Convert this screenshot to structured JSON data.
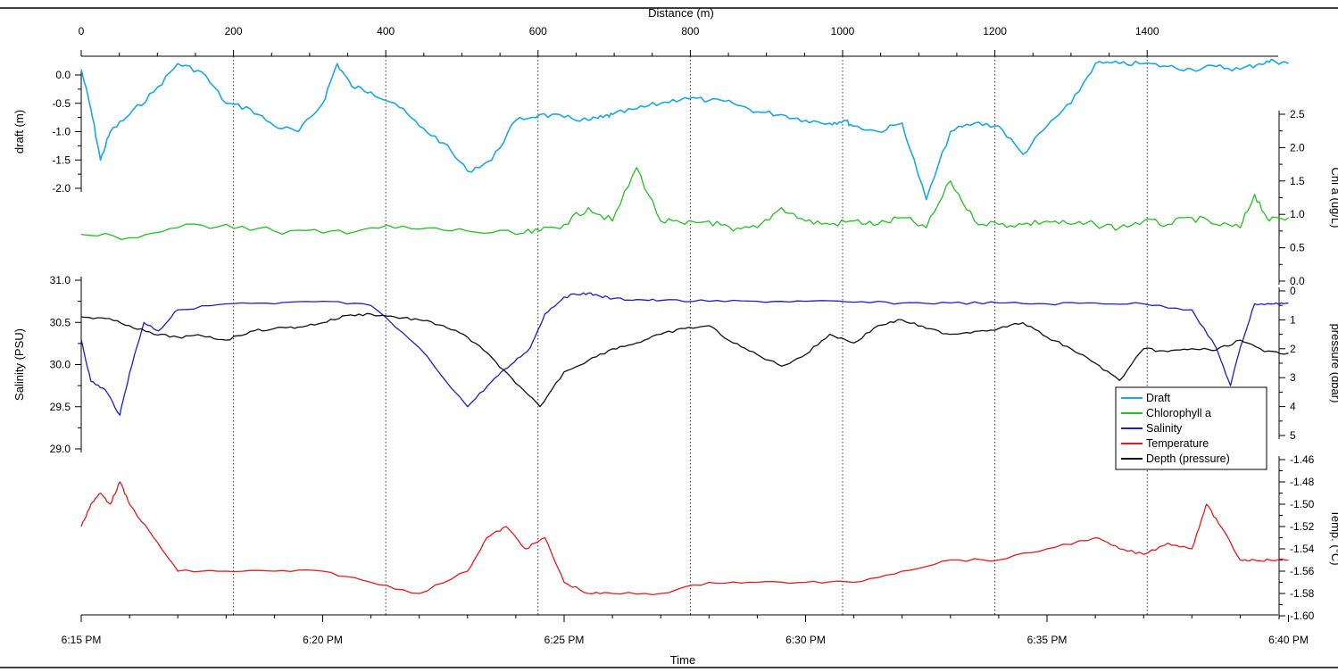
{
  "chart_data": {
    "type": "line",
    "top_axis": {
      "label": "Distance (m)",
      "range": [
        0,
        1500
      ],
      "ticks": [
        "0",
        "200",
        "400",
        "600",
        "800",
        "1000",
        "1200",
        "1400"
      ]
    },
    "x_axis": {
      "label": "Time",
      "range_minutes": [
        0,
        25
      ],
      "ticks": [
        "6:15 PM",
        "6:20 PM",
        "6:25 PM",
        "6:30 PM",
        "6:35 PM",
        "6:40 PM"
      ]
    },
    "vertical_gridlines_distance_m": [
      200,
      400,
      600,
      800,
      1000,
      1200,
      1400
    ],
    "panels": [
      {
        "key": "draft",
        "ylabel": "draft (m)",
        "side": "left",
        "ylim": [
          -2.2,
          0.3
        ],
        "ticks": [
          "0.0",
          "-0.5",
          "-1.0",
          "-1.5",
          "-2.0"
        ]
      },
      {
        "key": "chl",
        "ylabel": "Chl a (ug/L)",
        "side": "right",
        "ylim": [
          0.0,
          2.5
        ],
        "ticks": [
          "2.5",
          "2.0",
          "1.5",
          "1.0",
          "0.5",
          "0.0"
        ]
      },
      {
        "key": "salinity",
        "ylabel": "Salinity (PSU)",
        "side": "left",
        "ylim": [
          29.0,
          31.0
        ],
        "ticks": [
          "31.0",
          "30.5",
          "30.0",
          "29.5",
          "29.0"
        ]
      },
      {
        "key": "pressure",
        "ylabel": "pressure (dbar)",
        "side": "right",
        "ylim": [
          0,
          5
        ],
        "inverted": true,
        "ticks": [
          "0",
          "1",
          "2",
          "3",
          "4",
          "5"
        ]
      },
      {
        "key": "temperature",
        "ylabel": "Temp. (°C)",
        "side": "right",
        "ylim": [
          -1.6,
          -1.46
        ],
        "ticks": [
          "-1.46",
          "-1.48",
          "-1.50",
          "-1.52",
          "-1.54",
          "-1.56",
          "-1.58",
          "-1.60"
        ]
      }
    ],
    "series": [
      {
        "name": "Draft",
        "color": "#1aa7e8",
        "axis": "draft",
        "x_minutes": [
          0,
          0.2,
          0.4,
          0.6,
          1.0,
          1.5,
          2.0,
          2.5,
          3.0,
          3.5,
          4.0,
          4.5,
          5.0,
          5.3,
          5.6,
          6.0,
          6.5,
          7.0,
          7.5,
          8.0,
          8.5,
          9.0,
          9.5,
          10.0,
          10.5,
          10.8,
          11.0,
          11.5,
          12.0,
          12.5,
          13.0,
          13.5,
          14.0,
          14.5,
          15.0,
          15.5,
          15.8,
          16.0,
          16.5,
          17.0,
          17.5,
          18.0,
          18.5,
          19.0,
          19.5,
          20.0,
          20.5,
          21.0,
          21.5,
          22.0,
          22.5,
          23.0,
          23.5,
          24.0,
          24.4,
          24.7,
          25.0
        ],
        "values": [
          0.1,
          -0.6,
          -1.5,
          -1.0,
          -0.7,
          -0.3,
          0.2,
          0.05,
          -0.5,
          -0.6,
          -0.9,
          -1.0,
          -0.5,
          0.2,
          -0.2,
          -0.3,
          -0.5,
          -0.9,
          -1.2,
          -1.7,
          -1.5,
          -0.8,
          -0.7,
          -0.75,
          -0.8,
          -0.75,
          -0.7,
          -0.6,
          -0.5,
          -0.4,
          -0.45,
          -0.5,
          -0.65,
          -0.7,
          -0.8,
          -0.85,
          -0.8,
          -0.9,
          -1.0,
          -0.85,
          -2.2,
          -1.0,
          -0.85,
          -0.9,
          -1.4,
          -0.9,
          -0.5,
          0.2,
          0.2,
          0.2,
          0.15,
          0.1,
          0.15,
          0.1,
          0.2,
          0.25,
          0.2
        ]
      },
      {
        "name": "Chlorophyll a",
        "color": "#22c022",
        "axis": "chl",
        "x_minutes": [
          0,
          1.0,
          2.0,
          3.0,
          4.0,
          5.0,
          6.0,
          7.0,
          8.0,
          9.0,
          9.5,
          10.0,
          10.5,
          11.0,
          11.5,
          12.0,
          12.5,
          13.0,
          13.5,
          14.0,
          14.5,
          15.0,
          15.5,
          16.0,
          16.5,
          17.0,
          17.5,
          18.0,
          18.5,
          19.0,
          19.5,
          20.0,
          20.5,
          21.0,
          21.5,
          22.0,
          22.5,
          23.0,
          23.5,
          24.0,
          24.3,
          24.6,
          25.0
        ],
        "values": [
          0.7,
          0.65,
          0.8,
          0.85,
          0.75,
          0.72,
          0.8,
          0.78,
          0.75,
          0.7,
          0.75,
          0.85,
          1.1,
          0.9,
          1.7,
          0.9,
          0.85,
          0.9,
          0.75,
          0.8,
          1.1,
          0.9,
          0.85,
          0.9,
          0.85,
          0.95,
          0.8,
          1.5,
          0.9,
          0.85,
          0.85,
          0.9,
          0.85,
          0.85,
          0.8,
          0.9,
          0.85,
          0.95,
          0.85,
          0.8,
          1.3,
          0.9,
          0.95
        ]
      },
      {
        "name": "Salinity",
        "color": "#1d1dd0",
        "axis": "salinity",
        "x_minutes": [
          0,
          0.2,
          0.5,
          0.8,
          1.0,
          1.3,
          1.6,
          2.0,
          3.0,
          4.0,
          5.0,
          6.0,
          7.0,
          8.0,
          8.5,
          8.9,
          9.3,
          9.6,
          10.0,
          10.4,
          10.7,
          11.0,
          11.5,
          12.0,
          13.0,
          14.0,
          15.0,
          16.0,
          17.0,
          18.0,
          19.0,
          20.0,
          21.0,
          22.0,
          23.0,
          23.5,
          23.8,
          24.0,
          24.3,
          24.7,
          25.0
        ],
        "values": [
          30.3,
          29.8,
          29.7,
          29.4,
          29.9,
          30.5,
          30.4,
          30.65,
          30.72,
          30.72,
          30.75,
          30.7,
          30.2,
          29.5,
          29.8,
          30.0,
          30.2,
          30.6,
          30.8,
          30.85,
          30.82,
          30.78,
          30.77,
          30.76,
          30.75,
          30.75,
          30.75,
          30.74,
          30.73,
          30.73,
          30.73,
          30.72,
          30.73,
          30.72,
          30.65,
          30.2,
          29.75,
          30.2,
          30.72,
          30.72,
          30.73
        ]
      },
      {
        "name": "Temperature",
        "color": "#e81a1a",
        "axis": "temperature",
        "x_minutes": [
          0,
          0.2,
          0.4,
          0.6,
          0.8,
          1.0,
          1.5,
          2.0,
          3.0,
          4.0,
          5.0,
          6.0,
          7.0,
          8.0,
          8.4,
          8.8,
          9.2,
          9.6,
          10.0,
          10.5,
          11.0,
          12.0,
          13.0,
          14.0,
          15.0,
          16.0,
          17.0,
          18.0,
          19.0,
          20.0,
          21.0,
          21.5,
          22.0,
          22.5,
          23.0,
          23.3,
          23.6,
          24.0,
          24.3,
          24.6,
          25.0
        ],
        "values": [
          -1.52,
          -1.5,
          -1.49,
          -1.5,
          -1.48,
          -1.5,
          -1.53,
          -1.56,
          -1.56,
          -1.56,
          -1.56,
          -1.57,
          -1.58,
          -1.56,
          -1.53,
          -1.52,
          -1.54,
          -1.53,
          -1.57,
          -1.58,
          -1.58,
          -1.58,
          -1.57,
          -1.57,
          -1.57,
          -1.57,
          -1.56,
          -1.55,
          -1.55,
          -1.54,
          -1.53,
          -1.54,
          -1.545,
          -1.535,
          -1.54,
          -1.5,
          -1.52,
          -1.55,
          -1.55,
          -1.55,
          -1.55
        ]
      },
      {
        "name": "Depth (pressure)",
        "color": "#111111",
        "axis": "pressure",
        "x_minutes": [
          0,
          0.5,
          1.0,
          1.5,
          2.0,
          2.5,
          3.0,
          3.5,
          4.0,
          4.5,
          5.0,
          5.5,
          6.0,
          6.5,
          7.0,
          7.5,
          8.0,
          8.5,
          9.0,
          9.5,
          10.0,
          10.5,
          11.0,
          11.5,
          12.0,
          12.5,
          13.0,
          13.5,
          14.0,
          14.5,
          15.0,
          15.5,
          16.0,
          16.5,
          17.0,
          17.5,
          18.0,
          18.5,
          19.0,
          19.5,
          20.0,
          20.5,
          21.0,
          21.5,
          22.0,
          22.5,
          23.0,
          23.5,
          24.0,
          24.5,
          25.0
        ],
        "values": [
          0.9,
          0.95,
          1.2,
          1.5,
          1.6,
          1.55,
          1.7,
          1.4,
          1.3,
          1.25,
          1.1,
          0.85,
          0.8,
          0.9,
          1.0,
          1.2,
          1.6,
          2.3,
          3.2,
          4.0,
          2.8,
          2.4,
          2.0,
          1.8,
          1.5,
          1.3,
          1.2,
          1.8,
          2.2,
          2.6,
          2.2,
          1.5,
          1.8,
          1.2,
          1.0,
          1.3,
          1.5,
          1.4,
          1.3,
          1.1,
          1.6,
          2.0,
          2.5,
          3.1,
          2.0,
          2.1,
          2.0,
          2.05,
          1.7,
          2.1,
          2.15
        ]
      }
    ],
    "legend": {
      "placement": "middle-right",
      "entries": [
        "Draft",
        "Chlorophyll a",
        "Salinity",
        "Temperature",
        "Depth (pressure)"
      ]
    }
  }
}
